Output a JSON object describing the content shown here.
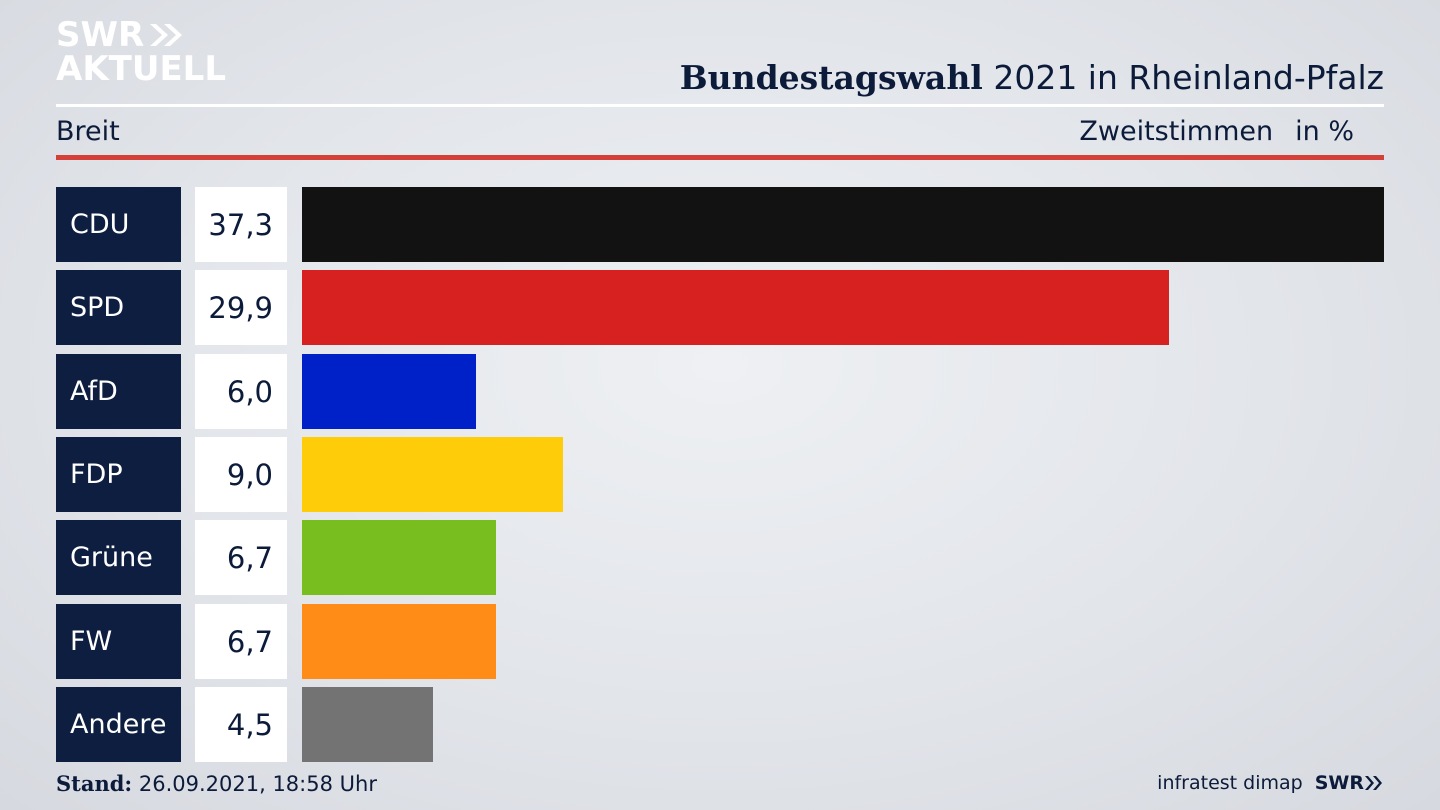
{
  "logo": {
    "line1": "SWR",
    "line2": "AKTUELL"
  },
  "header": {
    "title_bold": "Bundestagswahl",
    "title_rest": " 2021 in Rheinland-Pfalz",
    "left_label": "Breit",
    "right_label": "Zweitstimmen",
    "unit_label": "in %"
  },
  "chart_data": {
    "type": "bar",
    "orientation": "horizontal",
    "categories": [
      "CDU",
      "SPD",
      "AfD",
      "FDP",
      "Grüne",
      "FW",
      "Andere"
    ],
    "values": [
      37.3,
      29.9,
      6.0,
      9.0,
      6.7,
      6.7,
      4.5
    ],
    "value_labels": [
      "37,3",
      "29,9",
      "6,0",
      "9,0",
      "6,7",
      "6,7",
      "4,5"
    ],
    "colors": [
      "#121212",
      "#d72020",
      "#0020c8",
      "#ffcc0a",
      "#78be1e",
      "#ff8c17",
      "#737373"
    ],
    "xlim": [
      0,
      37.3
    ],
    "grid": false
  },
  "footer": {
    "stand_label": "Stand:",
    "stand_value": " 26.09.2021, 18:58 Uhr",
    "source": "infratest dimap",
    "brand": "SWR"
  }
}
